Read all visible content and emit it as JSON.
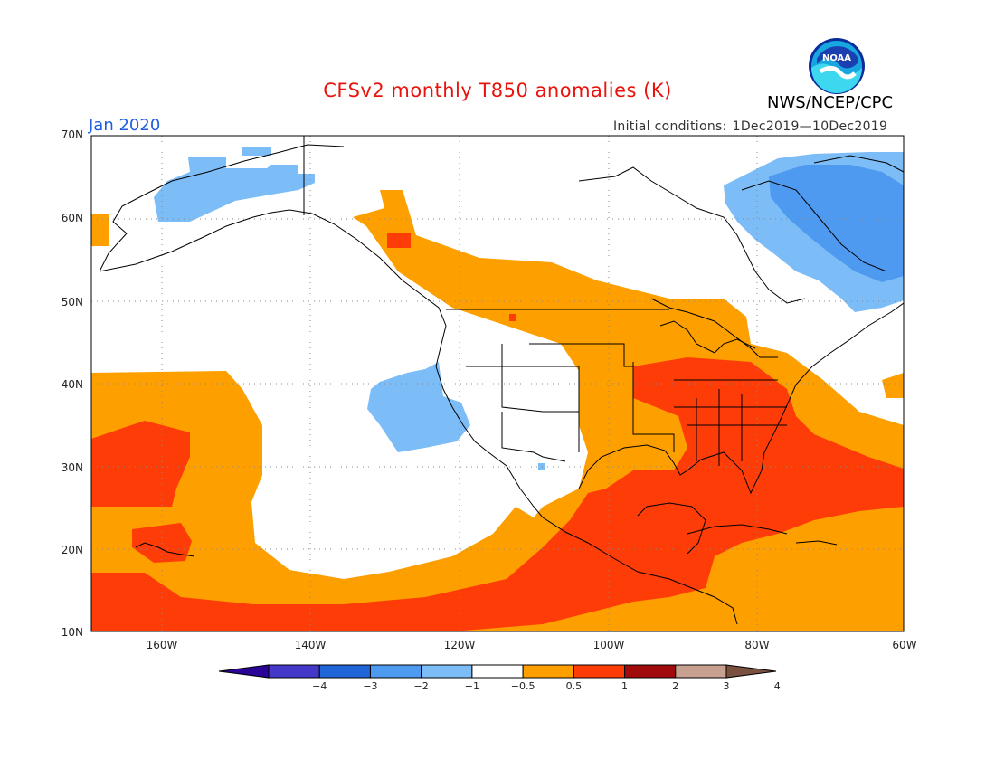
{
  "title": "CFSv2 monthly T850 anomalies (K)",
  "agency": "NWS/NCEP/CPC",
  "logo_text": "NOAA",
  "forecast_month": "Jan 2020",
  "initial_conditions": {
    "label": "Initial conditions:",
    "start": "1Dec2019",
    "end": "10Dec2019"
  },
  "lat_labels": [
    "70N",
    "60N",
    "50N",
    "40N",
    "30N",
    "20N",
    "10N"
  ],
  "lon_labels": [
    "160W",
    "140W",
    "120W",
    "100W",
    "80W",
    "60W"
  ],
  "colorbar": {
    "ticks": [
      "−4",
      "−3",
      "−2",
      "−1",
      "−0.5",
      "0.5",
      "1",
      "2",
      "3",
      "4"
    ],
    "colors": [
      "#2a0496",
      "#4338c8",
      "#1f66d8",
      "#4d9af0",
      "#7cbdf7",
      "#ffffff",
      "#fe9f00",
      "#fe3c08",
      "#a10a0a",
      "#c8a090",
      "#7a5040"
    ]
  },
  "colors": {
    "title": "#e8140c",
    "month": "#1f5fe0",
    "coast": "#000000",
    "grid": "#888888"
  }
}
